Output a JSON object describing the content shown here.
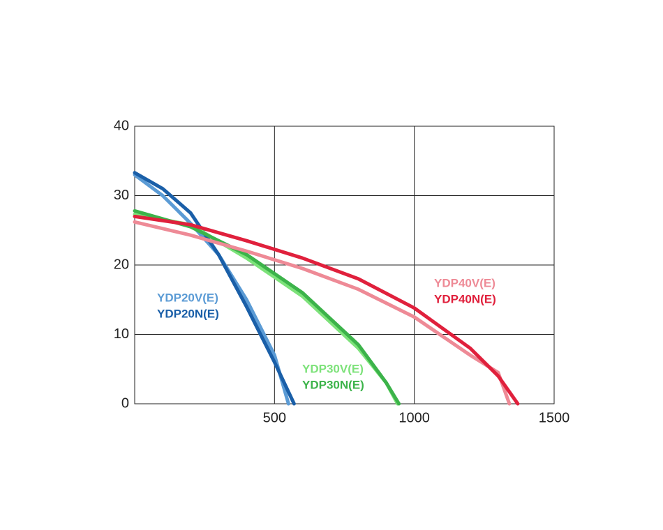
{
  "chart_data": {
    "type": "line",
    "xlim": [
      0,
      1500
    ],
    "ylim": [
      0,
      40
    ],
    "xticks": [
      500,
      1000,
      1500
    ],
    "yticks": [
      0,
      10,
      20,
      30,
      40
    ],
    "grid": true,
    "series": [
      {
        "name": "YDP20V(E)",
        "color": "#5b9bd5",
        "x": [
          0,
          100,
          200,
          300,
          400,
          500,
          550
        ],
        "values": [
          33,
          30,
          26,
          21.5,
          15,
          7,
          0
        ]
      },
      {
        "name": "YDP20N(E)",
        "color": "#1a5fa8",
        "x": [
          0,
          100,
          200,
          300,
          400,
          500,
          570
        ],
        "values": [
          33.3,
          31,
          27.5,
          21.5,
          14,
          6,
          0
        ]
      },
      {
        "name": "YDP30V(E)",
        "color": "#7de27a",
        "x": [
          0,
          200,
          400,
          600,
          800,
          900,
          940
        ],
        "values": [
          27.3,
          25.8,
          21,
          15.5,
          8,
          3,
          0
        ]
      },
      {
        "name": "YDP30N(E)",
        "color": "#3cb34a",
        "x": [
          0,
          200,
          400,
          600,
          800,
          900,
          945
        ],
        "values": [
          27.8,
          25.5,
          21.5,
          16,
          8.5,
          3,
          0
        ]
      },
      {
        "name": "YDP40V(E)",
        "color": "#ee8a96",
        "x": [
          0,
          200,
          400,
          600,
          800,
          1000,
          1200,
          1300,
          1340
        ],
        "values": [
          26.2,
          24.3,
          22,
          19.5,
          16.5,
          12.5,
          7,
          4.5,
          0
        ]
      },
      {
        "name": "YDP40N(E)",
        "color": "#e0203c",
        "x": [
          0,
          200,
          400,
          600,
          800,
          1000,
          1200,
          1300,
          1370
        ],
        "values": [
          27,
          25.8,
          23.5,
          21,
          18,
          13.8,
          8,
          4,
          0
        ]
      }
    ]
  }
}
